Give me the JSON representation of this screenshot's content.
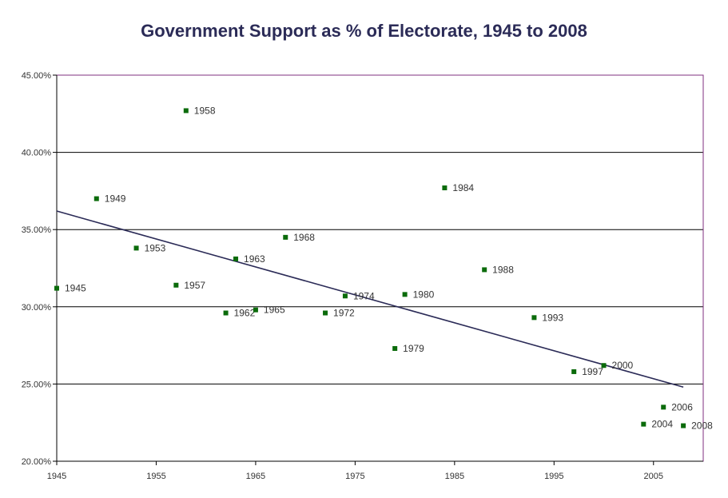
{
  "chart_data": {
    "type": "scatter",
    "title": "Government Support as % of Electorate, 1945 to 2008",
    "xlim": [
      1945,
      2010
    ],
    "ylim": [
      20,
      45
    ],
    "x_ticks": [
      1945,
      1955,
      1965,
      1975,
      1985,
      1995,
      2005
    ],
    "y_ticks": [
      {
        "value": 20,
        "label": "20.00%"
      },
      {
        "value": 25,
        "label": "25.00%"
      },
      {
        "value": 30,
        "label": "30.00%"
      },
      {
        "value": 35,
        "label": "35.00%"
      },
      {
        "value": 40,
        "label": "40.00%"
      },
      {
        "value": 45,
        "label": "45.00%"
      }
    ],
    "grid": "horizontal",
    "point_color": "#0b6b0b",
    "trendline_color": "#2b2b57",
    "points": [
      {
        "x": 1945,
        "y": 31.2,
        "label": "1945"
      },
      {
        "x": 1949,
        "y": 37.0,
        "label": "1949"
      },
      {
        "x": 1953,
        "y": 33.8,
        "label": "1953"
      },
      {
        "x": 1957,
        "y": 31.4,
        "label": "1957"
      },
      {
        "x": 1958,
        "y": 42.7,
        "label": "1958"
      },
      {
        "x": 1962,
        "y": 29.6,
        "label": "1962"
      },
      {
        "x": 1963,
        "y": 33.1,
        "label": "1963"
      },
      {
        "x": 1965,
        "y": 29.8,
        "label": "1965"
      },
      {
        "x": 1968,
        "y": 34.5,
        "label": "1968"
      },
      {
        "x": 1972,
        "y": 29.6,
        "label": "1972"
      },
      {
        "x": 1974,
        "y": 30.7,
        "label": "1974"
      },
      {
        "x": 1979,
        "y": 27.3,
        "label": "1979"
      },
      {
        "x": 1980,
        "y": 30.8,
        "label": "1980"
      },
      {
        "x": 1984,
        "y": 37.7,
        "label": "1984"
      },
      {
        "x": 1988,
        "y": 32.4,
        "label": "1988"
      },
      {
        "x": 1993,
        "y": 29.3,
        "label": "1993"
      },
      {
        "x": 1997,
        "y": 25.8,
        "label": "1997"
      },
      {
        "x": 2000,
        "y": 26.2,
        "label": "2000"
      },
      {
        "x": 2004,
        "y": 22.4,
        "label": "2004"
      },
      {
        "x": 2006,
        "y": 23.5,
        "label": "2006"
      },
      {
        "x": 2008,
        "y": 22.3,
        "label": "2008"
      }
    ],
    "trendline": {
      "x": [
        1945,
        2008
      ],
      "y": [
        36.2,
        24.8
      ]
    }
  }
}
